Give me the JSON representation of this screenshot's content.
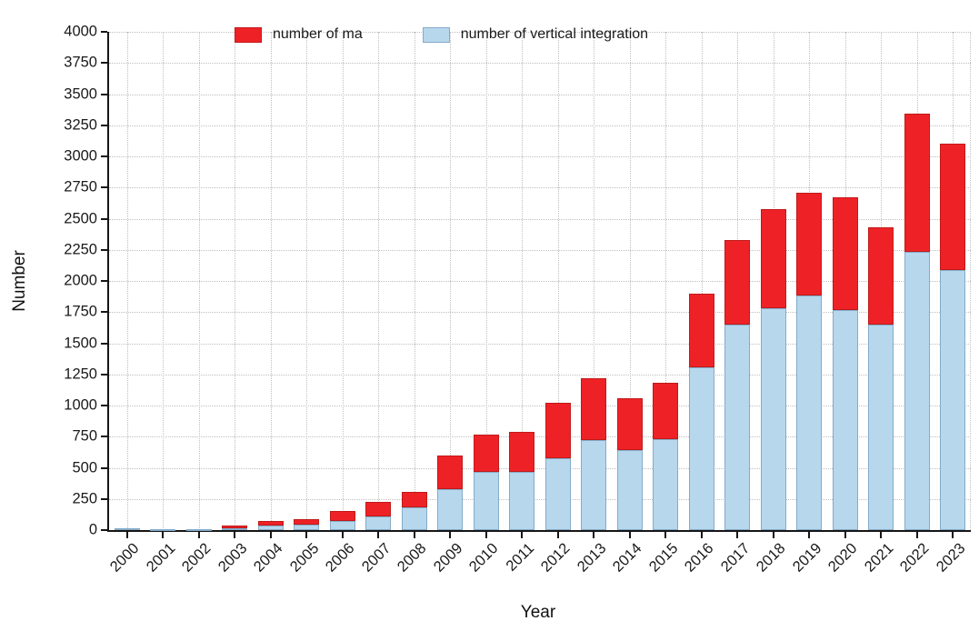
{
  "chart_data": {
    "type": "bar",
    "stacked": true,
    "title": "",
    "xlabel": "Year",
    "ylabel": "Number",
    "ylim": [
      0,
      4000
    ],
    "ytick_step": 250,
    "yticks": [
      0,
      250,
      500,
      750,
      1000,
      1250,
      1500,
      1750,
      2000,
      2250,
      2500,
      2750,
      3000,
      3250,
      3500,
      3750,
      4000
    ],
    "grid": true,
    "legend_position": "top",
    "categories": [
      "2000",
      "2001",
      "2002",
      "2003",
      "2004",
      "2005",
      "2006",
      "2007",
      "2008",
      "2009",
      "2010",
      "2011",
      "2012",
      "2013",
      "2014",
      "2015",
      "2016",
      "2017",
      "2018",
      "2019",
      "2020",
      "2021",
      "2022",
      "2023"
    ],
    "series": [
      {
        "name": "number of ma",
        "color": "#ee2226",
        "edge_color": "#c01a1a",
        "values": [
          0,
          0,
          0,
          20,
          35,
          45,
          80,
          115,
          125,
          270,
          300,
          320,
          445,
          500,
          420,
          455,
          590,
          675,
          800,
          830,
          905,
          780,
          1110,
          1010
        ]
      },
      {
        "name": "number of vertical integration",
        "color": "#b7d7ed",
        "edge_color": "#84abc9",
        "values": [
          12,
          10,
          10,
          15,
          35,
          45,
          70,
          110,
          185,
          330,
          470,
          465,
          580,
          720,
          640,
          730,
          1310,
          1650,
          1780,
          1880,
          1770,
          1650,
          2230,
          2090
        ]
      }
    ]
  }
}
